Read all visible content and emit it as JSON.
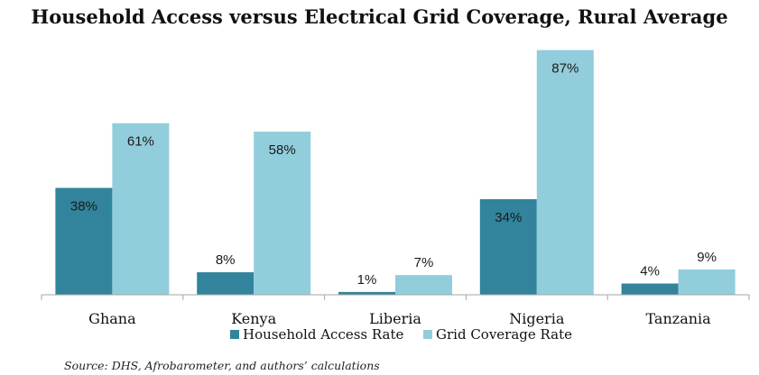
{
  "chart_data": {
    "type": "bar",
    "title": "Household Access versus Electrical Grid Coverage, Rural Average",
    "categories": [
      "Ghana",
      "Kenya",
      "Liberia",
      "Nigeria",
      "Tanzania"
    ],
    "series": [
      {
        "name": "Household Access Rate",
        "values": [
          38,
          8,
          1,
          34,
          4
        ],
        "labels": [
          "38%",
          "8%",
          "1%",
          "34%",
          "4%"
        ],
        "color": "#31849b"
      },
      {
        "name": "Grid Coverage Rate",
        "values": [
          61,
          58,
          7,
          87,
          9
        ],
        "labels": [
          "61%",
          "58%",
          "7%",
          "87%",
          "9%"
        ],
        "color": "#92cddc"
      }
    ],
    "ylim": [
      0,
      100
    ],
    "xlabel": "",
    "ylabel": "",
    "grid": false,
    "legend_position": "bottom"
  },
  "source_note": "Source: DHS, Afrobarometer, and authors’ calculations"
}
